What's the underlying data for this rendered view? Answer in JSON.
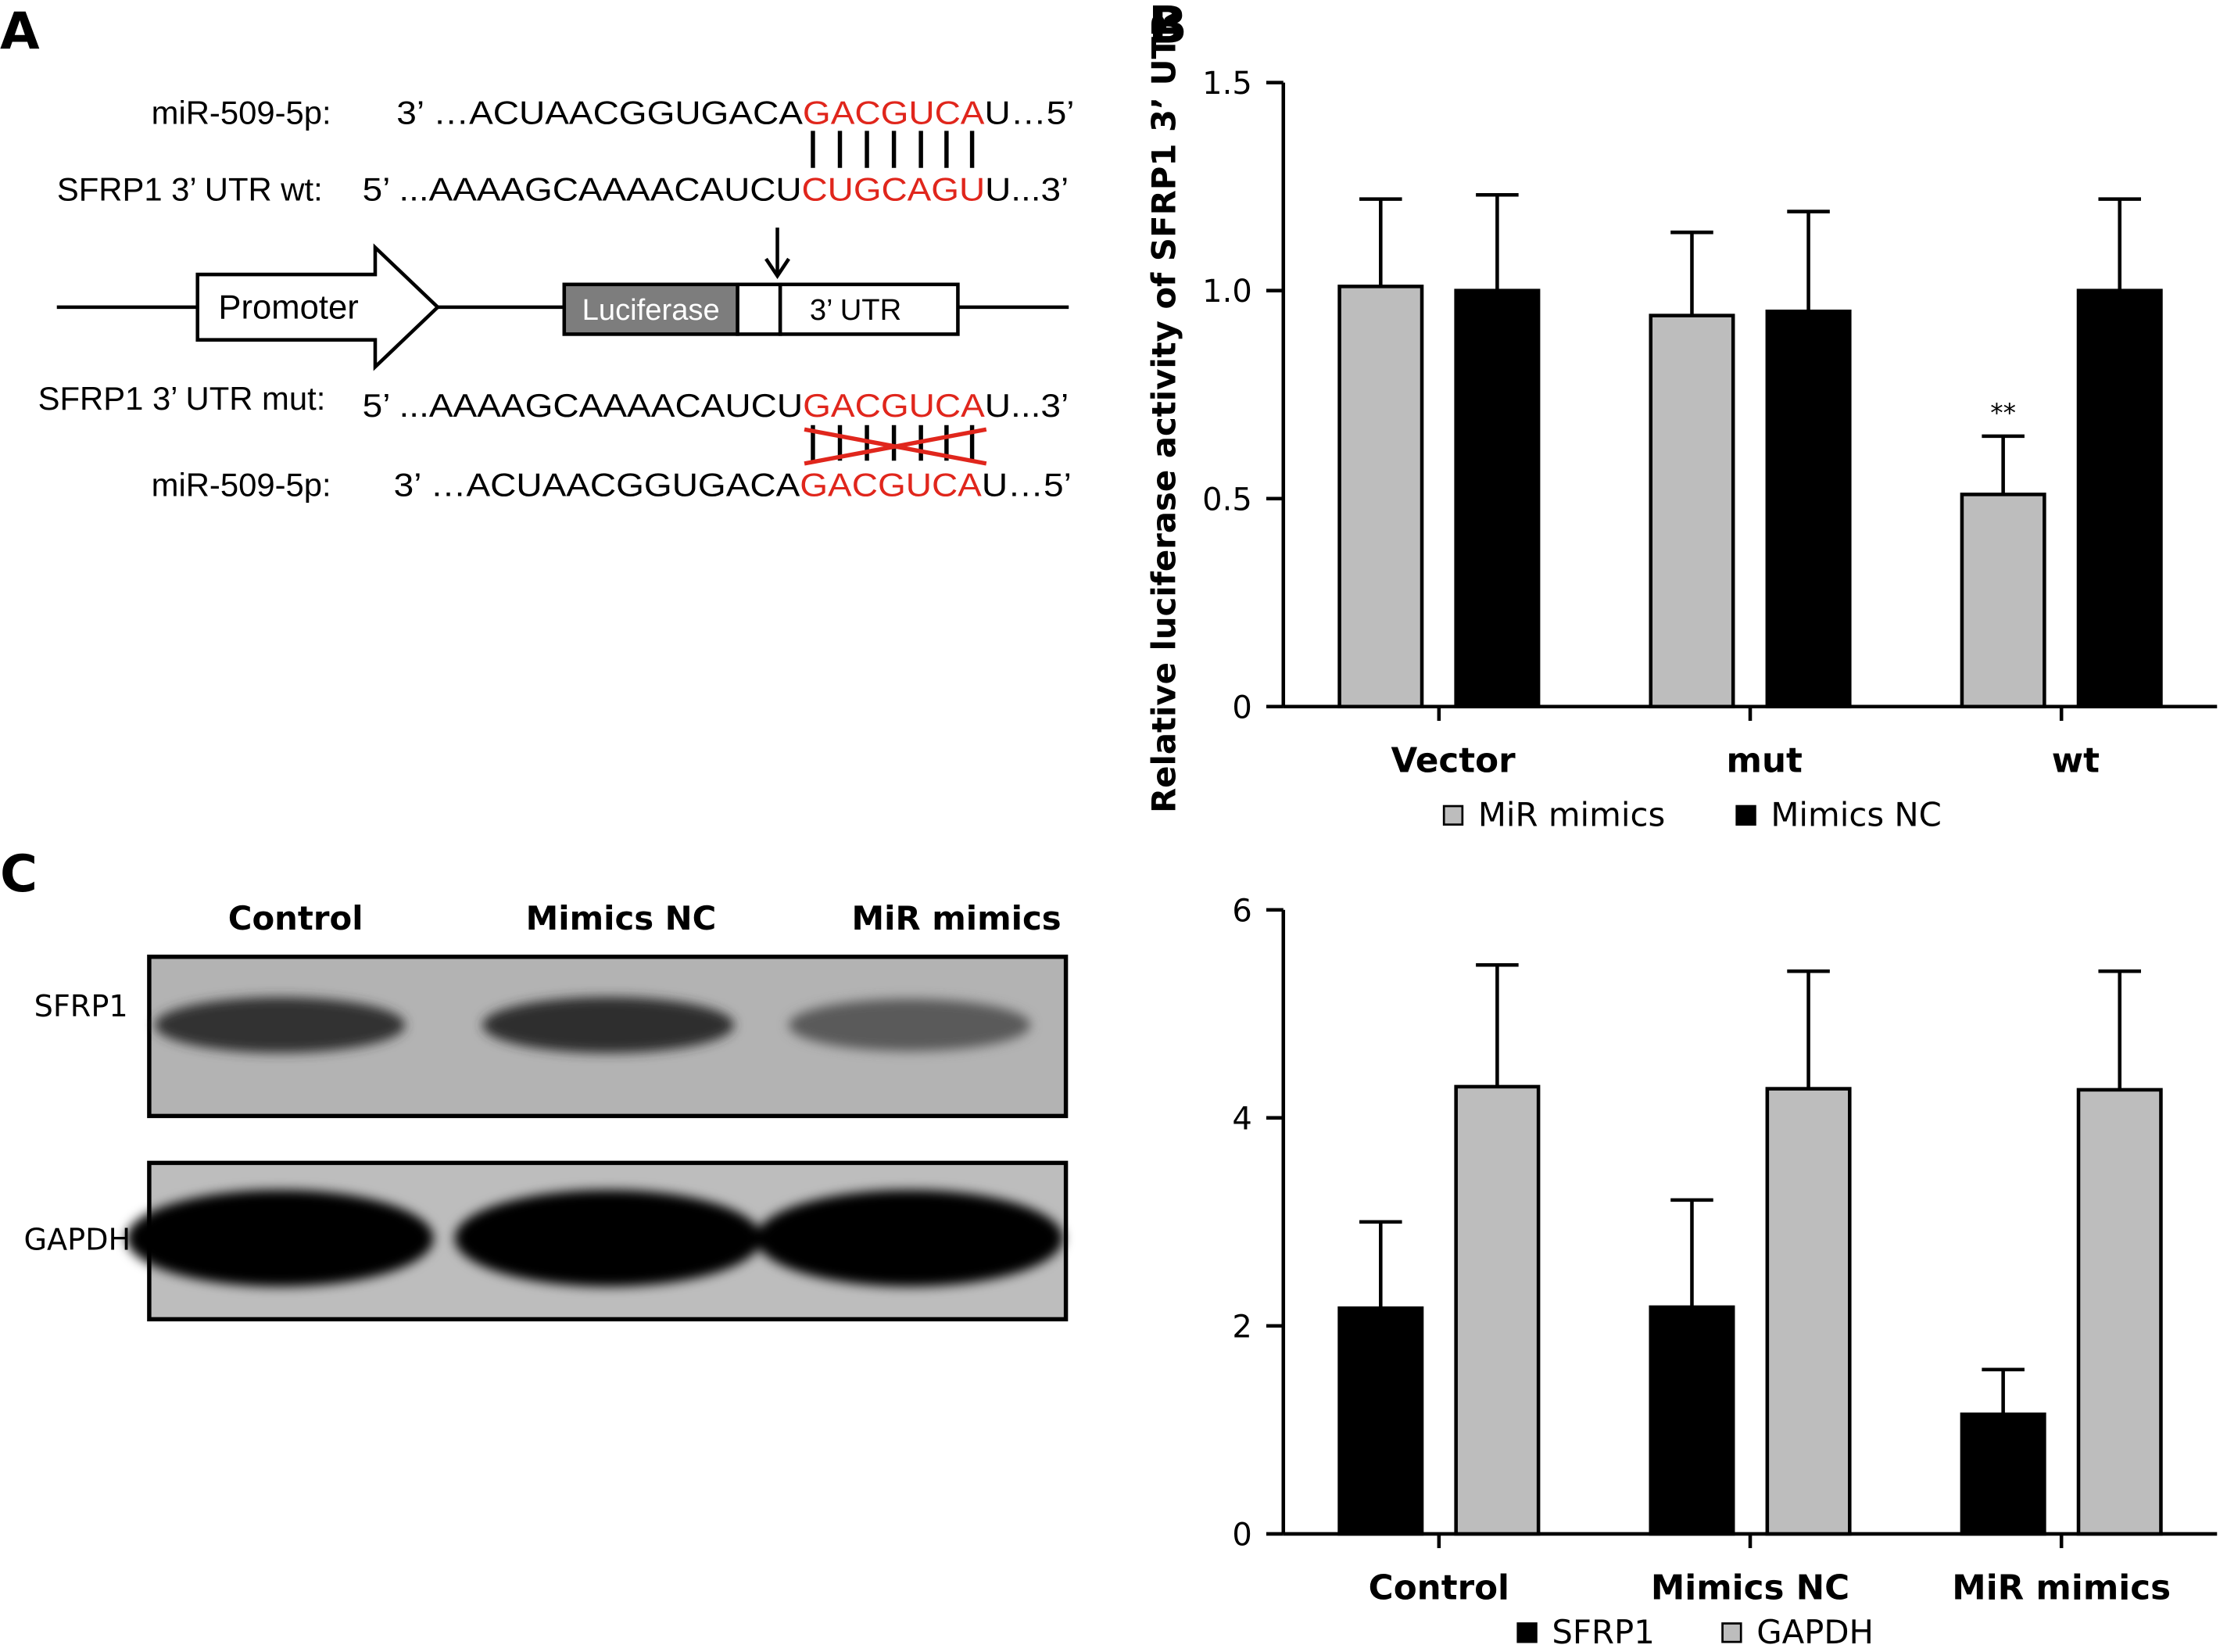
{
  "colors": {
    "black": "#000000",
    "gray": "#bdbdbd",
    "red": "#e0261c",
    "luciferase_box": "#7d7d7d",
    "blot_bg": "#b3b3b3"
  },
  "panel_a": {
    "letter": "A",
    "mir_label": "miR-509-5p:",
    "mir_seq_black": "3’ …ACUAACGGUGACA",
    "mir_seq_red": "GACGUCA",
    "mir_seq_tail": "U…5’",
    "wt_label": "SFRP1 3’ UTR wt:",
    "wt_seq_black": "5’ ...AAAAGCAAAACAUCU",
    "wt_seq_red": "CUGCAGU",
    "wt_seq_tail": "U...3’",
    "promoter": "Promoter",
    "luciferase": "Luciferase",
    "utr": "3’ UTR",
    "mut_label": "SFRP1 3’ UTR mut:",
    "mut_seq_black": "5’ ...AAAAGCAAAACAUCU",
    "mut_seq_red": "GACGUCA",
    "mut_seq_tail": "U...3’",
    "mir2_label": "miR-509-5p:",
    "mir2_seq_black": "3’ …ACUAACGGUGACA",
    "mir2_seq_red": "GACGUCA",
    "mir2_seq_tail": "U…5’"
  },
  "panel_c": {
    "letter": "C",
    "lanes": [
      "Control",
      "Mimics NC",
      "MiR mimics"
    ],
    "rows": [
      "SFRP1",
      "GAPDH"
    ],
    "band_intensity": {
      "SFRP1": [
        0.72,
        0.75,
        0.5
      ],
      "GAPDH": [
        1.0,
        1.0,
        1.0
      ]
    }
  },
  "chart_data": [
    {
      "letter": "B",
      "type": "bar",
      "categories": [
        "Vector",
        "mut",
        "wt"
      ],
      "series": [
        {
          "name": "MiR mimics",
          "color": "#bdbdbd",
          "values": [
            1.01,
            0.94,
            0.51
          ],
          "errors": [
            0.21,
            0.2,
            0.14
          ]
        },
        {
          "name": "Mimics NC",
          "color": "#000000",
          "values": [
            1.0,
            0.95,
            1.0
          ],
          "errors": [
            0.23,
            0.24,
            0.22
          ]
        }
      ],
      "ylabel": "Relative luciferase activity of SFRP1 3’ UTR",
      "ylim": [
        0,
        1.5
      ],
      "yticks": [
        "0",
        "0.5",
        "1.0",
        "1.5"
      ],
      "annotations": [
        {
          "category": "wt",
          "series": "MiR mimics",
          "text": "**"
        }
      ],
      "grid": false,
      "legend": "bottom"
    },
    {
      "type": "bar",
      "categories": [
        "Control",
        "Mimics NC",
        "MiR mimics"
      ],
      "series": [
        {
          "name": "SFRP1",
          "color": "#000000",
          "values": [
            2.17,
            2.18,
            1.15
          ],
          "errors": [
            0.83,
            1.03,
            0.43
          ]
        },
        {
          "name": "GAPDH",
          "color": "#bdbdbd",
          "values": [
            4.3,
            4.28,
            4.27
          ],
          "errors": [
            1.17,
            1.13,
            1.14
          ]
        }
      ],
      "ylabel": "",
      "ylim": [
        0,
        6
      ],
      "yticks": [
        "0",
        "2",
        "4",
        "6"
      ],
      "grid": false,
      "legend": "bottom"
    }
  ]
}
